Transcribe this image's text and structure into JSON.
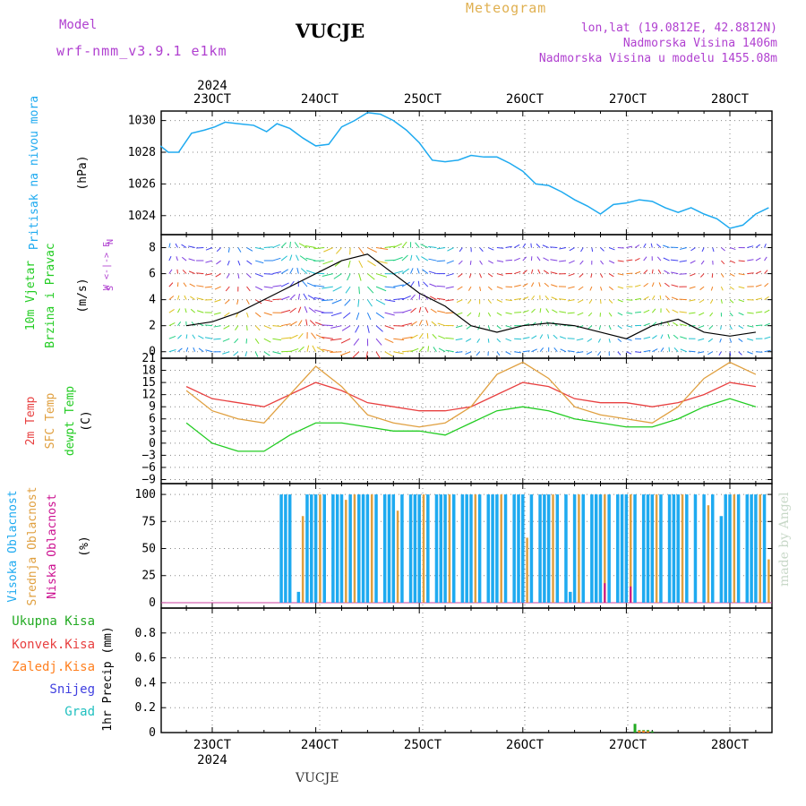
{
  "header": {
    "model_label": "Model",
    "model_version": "wrf-nmm_v3.9.1 e1km",
    "station": "VUCJE",
    "product": "Meteogram",
    "lonlat": "lon,lat (19.0812E, 42.8812N)",
    "elevation": "Nadmorska Visina 1406m",
    "elevation_model": "Nadmorska Visina u modelu 1455.08m",
    "footer_station": "VUCJE",
    "credit": "made by Angel"
  },
  "colors": {
    "pressure": "#1eaaf0",
    "temp2m": "#e84040",
    "sfc_temp": "#e0a040",
    "dewpoint": "#22cc22",
    "cloud_high": "#1eaaf0",
    "cloud_mid": "#e0a040",
    "cloud_low": "#cc1090",
    "precip_total": "#22aa22",
    "precip_conv": "#e84040",
    "precip_frozen": "#ff8020",
    "snow": "#4040e0",
    "hail": "#20c0c0",
    "wind_speed": "#000000"
  },
  "chart_data": [
    {
      "type": "line",
      "title": "Pritisak na nivou mora",
      "ylabel": "(hPa)",
      "x_ticks": [
        "23OCT",
        "24OCT",
        "25OCT",
        "26OCT",
        "27OCT",
        "28OCT"
      ],
      "x_top_year": "2024",
      "ylim": [
        1022.8,
        1030.6
      ],
      "y_ticks": [
        1024,
        1026,
        1028,
        1030
      ],
      "grid": true,
      "series": [
        {
          "x_day": [
            0,
            0.3,
            0.7,
            1.2,
            1.7,
            2.1,
            2.5,
            3.0,
            3.6,
            4.1,
            4.5,
            5.0,
            5.5,
            6.0,
            6.5,
            7.0,
            7.5,
            8.0,
            8.5,
            9.0,
            9.5,
            10.0,
            10.5,
            11.0,
            11.5,
            12.0,
            12.5,
            13.0,
            13.5,
            14.0,
            14.5,
            15.0,
            15.5,
            16.0,
            16.5,
            17.0,
            17.5,
            18.0,
            18.5,
            19.0,
            19.5,
            20.0,
            20.5,
            21.0,
            21.5,
            22.0,
            22.5,
            23.0,
            23.5,
            24.0,
            24.5,
            25.0,
            25.5,
            26.0,
            26.5,
            27.0,
            27.5,
            28.0,
            28.5,
            29.0,
            29.5,
            30.0,
            30.5,
            31.0,
            31.5,
            32.0,
            32.5,
            33.0,
            33.5,
            34.0,
            34.5,
            35.0,
            35.5,
            36.0,
            36.5,
            37.0,
            37.5,
            38.0,
            38.5,
            39.0,
            39.5,
            40.0,
            40.5,
            41.0,
            41.5,
            42.0,
            42.5,
            43.0,
            43.5,
            44.0,
            44.5,
            45.0,
            45.5,
            46.0,
            46.5,
            47.0,
            47.5,
            48.0
          ],
          "name": "",
          "values": [
            1028.4,
            1028.0,
            1028.0,
            1029.2,
            1029.4,
            1029.6,
            1029.9,
            1029.8,
            1029.7,
            1029.3,
            1029.8,
            1029.5,
            1028.9,
            1028.4,
            1028.5,
            1029.6,
            1030.0,
            1030.5,
            1030.4,
            1030.0,
            1029.4,
            1028.6,
            1027.5,
            1027.4,
            1027.5,
            1027.8,
            1027.7,
            1027.7,
            1027.3,
            1026.8,
            1026.0,
            1025.9,
            1025.5,
            1025.0,
            1024.6,
            1024.1,
            1024.7,
            1024.8,
            1025.0,
            1024.9,
            1024.5,
            1024.2,
            1024.5,
            1024.1,
            1023.8,
            1023.2,
            1023.4,
            1024.1,
            1024.5,
            1024.6,
            1024.3,
            1024.5,
            1024.6,
            1024.2,
            1024.6,
            1024.3,
            1024.0,
            1025.0,
            1025.8,
            1025.9,
            1025.5,
            1025.2,
            1024.8,
            1024.6,
            1024.4,
            1024.6,
            1024.4,
            1023.9,
            1023.5,
            1023.3,
            1023.1,
            1023.0,
            1022.9,
            1022.8,
            1022.8,
            1022.8,
            1022.8,
            1022.8,
            1022.8,
            1022.8,
            1022.8,
            1022.8,
            1022.8,
            1022.8,
            1022.8,
            1022.8,
            1022.8,
            1022.8,
            1022.8,
            1022.8,
            1022.8,
            1022.8,
            1022.8,
            1022.8,
            1022.8,
            1022.8,
            1022.8,
            1022.8
          ]
        }
      ]
    },
    {
      "type": "line",
      "title": "10m Vjetar Brzina i Pravac",
      "ylabel": "(m/s)",
      "compass": [
        "N",
        "W <-|-> E",
        "S"
      ],
      "ylim": [
        -0.5,
        9
      ],
      "y_ticks": [
        0,
        2,
        4,
        6,
        8
      ],
      "grid": true,
      "series": [
        {
          "name": "",
          "x_hour": [
            0,
            6,
            12,
            18,
            24,
            30,
            36,
            42,
            48,
            54,
            60,
            66,
            72,
            78,
            84,
            90,
            96,
            102,
            108,
            114,
            120,
            126,
            132,
            138,
            144,
            150,
            156,
            162,
            168,
            174,
            180,
            186,
            192,
            198,
            204,
            210,
            216,
            222,
            228,
            234,
            240,
            246,
            252,
            258,
            264,
            270,
            276,
            282,
            288
          ],
          "values": [
            2.5,
            2.0,
            2.3,
            3.0,
            4.0,
            5.0,
            6.0,
            7.0,
            7.5,
            6.0,
            4.5,
            3.5,
            2.0,
            1.5,
            2.0,
            2.2,
            2.0,
            1.5,
            1.0,
            2.0,
            2.5,
            1.5,
            1.2,
            1.5,
            2.0,
            1.8,
            1.5,
            1.2,
            1.0,
            1.5,
            1.8,
            1.5,
            1.3,
            1.5,
            2.0,
            2.5,
            2.5,
            2.5,
            2.6,
            2.5,
            2.4,
            2.3,
            2.2,
            2.0,
            1.8,
            1.5,
            1.0,
            1.5,
            2.0
          ]
        }
      ]
    },
    {
      "type": "line",
      "title": "2m Temp / SFC Temp / dewpt Temp",
      "ylabel": "(C)",
      "ylim": [
        -10,
        21
      ],
      "y_ticks": [
        -9,
        -6,
        -3,
        0,
        3,
        6,
        9,
        12,
        15,
        18,
        21
      ],
      "grid": true,
      "series": [
        {
          "name": "2m Temp",
          "x_hour": [
            0,
            6,
            12,
            18,
            24,
            30,
            36,
            42,
            48,
            54,
            60,
            66,
            72,
            78,
            84,
            90,
            96,
            102,
            108,
            114,
            120,
            126,
            132,
            138,
            144,
            150,
            156,
            162,
            168,
            174,
            180,
            186,
            192,
            198,
            204,
            210,
            216,
            222,
            228,
            234,
            240,
            246,
            252,
            258,
            264,
            270,
            276,
            282,
            288
          ],
          "values": [
            16,
            14,
            11,
            10,
            9,
            12,
            15,
            13,
            10,
            9,
            8,
            8,
            9,
            12,
            15,
            14,
            11,
            10,
            10,
            9,
            10,
            12,
            15,
            14,
            11,
            10,
            9,
            9,
            10,
            12,
            15,
            15,
            12,
            11,
            10,
            10,
            11,
            13,
            15,
            14,
            11,
            10,
            9,
            8,
            9,
            10,
            12,
            13,
            14
          ]
        },
        {
          "name": "SFC Temp",
          "x_hour": [
            0,
            6,
            12,
            18,
            24,
            30,
            36,
            42,
            48,
            54,
            60,
            66,
            72,
            78,
            84,
            90,
            96,
            102,
            108,
            114,
            120,
            126,
            132,
            138,
            144,
            150,
            156,
            162,
            168,
            174,
            180,
            186,
            192,
            198,
            204,
            210,
            216,
            222,
            228,
            234,
            240,
            246,
            252,
            258,
            264,
            270,
            276,
            282,
            288
          ],
          "values": [
            20,
            13,
            8,
            6,
            5,
            12,
            19,
            14,
            7,
            5,
            4,
            5,
            9,
            17,
            20,
            16,
            9,
            7,
            6,
            5,
            9,
            16,
            20,
            17,
            10,
            8,
            7,
            6,
            9,
            16,
            20,
            16,
            9,
            7,
            4,
            6,
            12,
            18,
            19,
            15,
            8,
            5,
            2,
            1,
            7,
            15,
            19,
            18,
            17
          ]
        },
        {
          "name": "dewpt Temp",
          "x_hour": [
            0,
            6,
            12,
            18,
            24,
            30,
            36,
            42,
            48,
            54,
            60,
            66,
            72,
            78,
            84,
            90,
            96,
            102,
            108,
            114,
            120,
            126,
            132,
            138,
            144,
            150,
            156,
            162,
            168,
            174,
            180,
            186,
            192,
            198,
            204,
            210,
            216,
            222,
            228,
            234,
            240,
            246,
            252,
            258,
            264,
            270,
            276,
            282,
            288
          ],
          "values": [
            3,
            5,
            0,
            -2,
            -2,
            2,
            5,
            5,
            4,
            3,
            3,
            2,
            5,
            8,
            9,
            8,
            6,
            5,
            4,
            4,
            6,
            9,
            11,
            9,
            7,
            6,
            5,
            5,
            7,
            10,
            12,
            10,
            7,
            6,
            5,
            6,
            8,
            9,
            9,
            8,
            6,
            3,
            -2,
            -6,
            -9,
            -4,
            2,
            2,
            3
          ]
        }
      ]
    },
    {
      "type": "bar",
      "title": "Visoka Oblacnost / Srednja Oblacnost / Niska Oblacnost",
      "ylabel": "(%)",
      "ylim": [
        -5,
        110
      ],
      "y_ticks": [
        0,
        25,
        50,
        75,
        100
      ],
      "grid": true,
      "series": [
        {
          "name": "Visoka Oblacnost",
          "x_hour": [
            28,
            29,
            30,
            32,
            34,
            35,
            36,
            38,
            40,
            41,
            42,
            44,
            46,
            47,
            48,
            50,
            52,
            53,
            54,
            56,
            58,
            59,
            60,
            62,
            64,
            65,
            66,
            68,
            70,
            71,
            72,
            74,
            76,
            77,
            78,
            80,
            82,
            83,
            84,
            86,
            88,
            89,
            90,
            92,
            94,
            95,
            96,
            98,
            100,
            101,
            102,
            104,
            106,
            107,
            108,
            110,
            112,
            113,
            114,
            116,
            118,
            119,
            120,
            122,
            124,
            126,
            128,
            130,
            131,
            132,
            134,
            136,
            137,
            138,
            140,
            218,
            220,
            222,
            224,
            226
          ],
          "values": [
            100,
            100,
            100,
            10,
            100,
            100,
            100,
            100,
            100,
            100,
            100,
            100,
            100,
            100,
            100,
            100,
            100,
            100,
            100,
            100,
            100,
            100,
            100,
            100,
            100,
            100,
            100,
            100,
            100,
            100,
            100,
            100,
            100,
            100,
            100,
            100,
            100,
            100,
            100,
            100,
            100,
            100,
            100,
            100,
            100,
            10,
            100,
            100,
            100,
            100,
            100,
            100,
            100,
            100,
            100,
            100,
            100,
            100,
            100,
            100,
            100,
            100,
            100,
            100,
            100,
            100,
            100,
            80,
            100,
            100,
            100,
            100,
            100,
            100,
            100,
            100,
            100,
            100,
            100,
            100
          ]
        },
        {
          "name": "Srednja Oblacnost",
          "x_hour": [
            33,
            37,
            43,
            45,
            49,
            55,
            61,
            67,
            73,
            79,
            85,
            91,
            97,
            103,
            109,
            115,
            121,
            127,
            133,
            139,
            141,
            142
          ],
          "values": [
            80,
            100,
            95,
            100,
            100,
            85,
            100,
            100,
            100,
            100,
            60,
            100,
            100,
            100,
            100,
            100,
            100,
            90,
            100,
            100,
            40,
            30
          ]
        },
        {
          "name": "Niska Oblacnost",
          "x_hour": [
            103,
            109,
            158,
            160,
            161
          ],
          "values": [
            18,
            15,
            8,
            10,
            12
          ]
        }
      ]
    },
    {
      "type": "bar",
      "title": "Ukupna Kisa / Konvek.Kisa / Zaledj.Kisa / Snijeg / Grad",
      "ylabel": "1hr Precip (mm)",
      "ylim": [
        0,
        1.0
      ],
      "y_ticks": [
        0,
        0.2,
        0.4,
        0.6,
        0.8
      ],
      "grid": true,
      "series": [
        {
          "name": "Ukupna Kisa",
          "x_hour": [
            110,
            111,
            112,
            113,
            114
          ],
          "values": [
            0.07,
            0.02,
            0.02,
            0.02,
            0.01
          ]
        },
        {
          "name": "Konvek.Kisa",
          "x_hour": [],
          "values": []
        },
        {
          "name": "Zaledj.Kisa",
          "x_hour": [
            111,
            112,
            113
          ],
          "values": [
            0.015,
            0.015,
            0.01
          ]
        },
        {
          "name": "Snijeg",
          "x_hour": [],
          "values": []
        },
        {
          "name": "Grad",
          "x_hour": [],
          "values": []
        }
      ],
      "x_bottom_year": "2024"
    }
  ]
}
